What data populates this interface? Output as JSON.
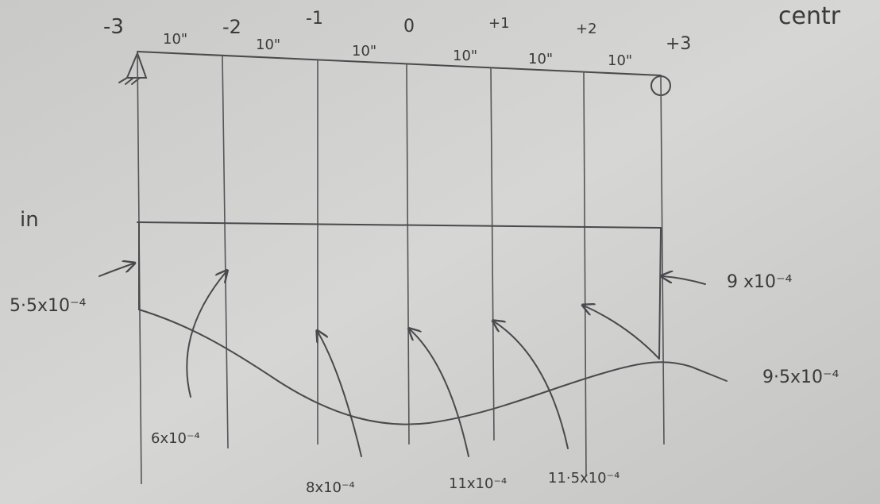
{
  "header": {
    "title": "centr"
  },
  "stations": [
    "-3",
    "-2",
    "-1",
    "0",
    "+1",
    "+2",
    "+3"
  ],
  "spacings": [
    "10\"",
    "10\"",
    "10\"",
    "10\"",
    "10\"",
    "10\""
  ],
  "unit": "in",
  "deflections": [
    "5·5x10⁻⁴",
    "6x10⁻⁴",
    "8x10⁻⁴",
    "11x10⁻⁴",
    "11·5x10⁻⁴",
    "9·5x10⁻⁴",
    "9 x10⁻⁴"
  ]
}
